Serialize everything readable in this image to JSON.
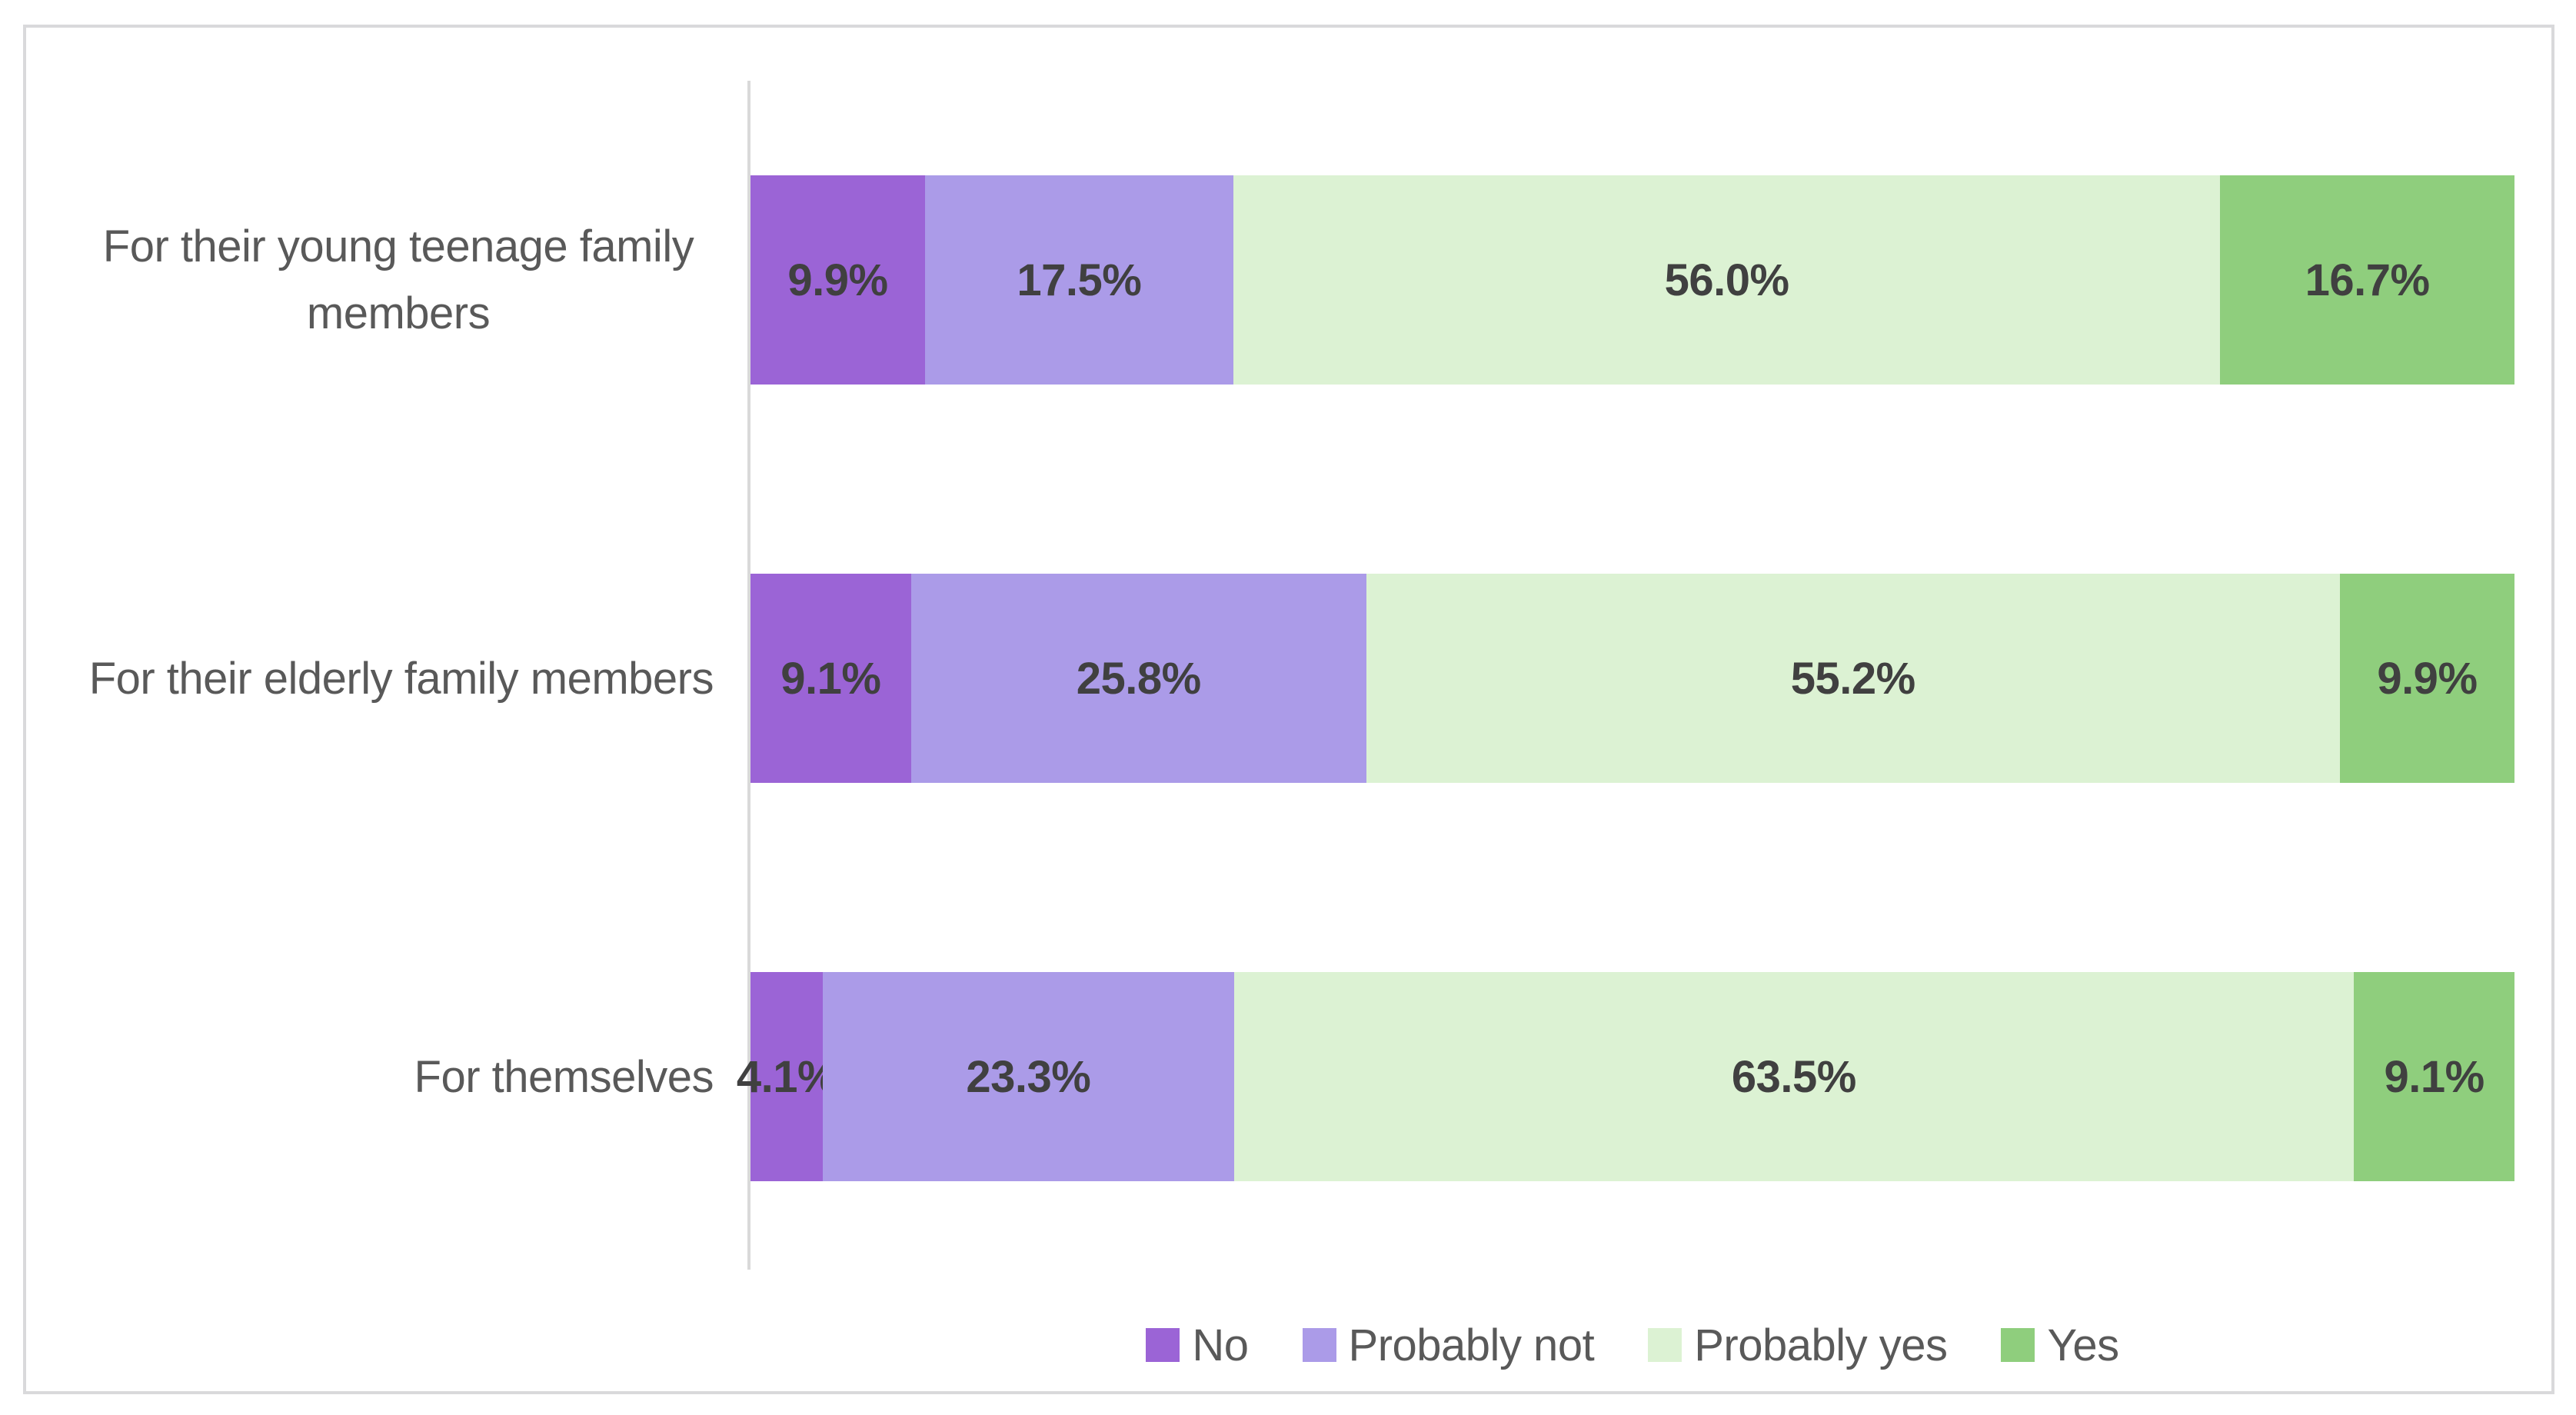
{
  "chart_data": {
    "type": "bar",
    "orientation": "horizontal",
    "stacked": true,
    "unit": "%",
    "title": "",
    "xlabel": "",
    "ylabel": "",
    "xlim": [
      0,
      100
    ],
    "grid": false,
    "categories": [
      "For their young teenage family members",
      "For their elderly family members",
      "For themselves"
    ],
    "series": [
      {
        "name": "No",
        "color": "#9b64d6",
        "values": [
          9.9,
          9.1,
          4.1
        ]
      },
      {
        "name": "Probably not",
        "color": "#ab9be8",
        "values": [
          17.5,
          25.8,
          23.3
        ]
      },
      {
        "name": "Probably yes",
        "color": "#dcf2d3",
        "values": [
          56.0,
          55.2,
          63.5
        ]
      },
      {
        "name": "Yes",
        "color": "#8fce7d",
        "values": [
          16.7,
          9.9,
          9.1
        ]
      }
    ],
    "data_labels": [
      [
        "9.9%",
        "17.5%",
        "56.0%",
        "16.7%"
      ],
      [
        "9.1%",
        "25.8%",
        "55.2%",
        "9.9%"
      ],
      [
        "4.1%",
        "23.3%",
        "63.5%",
        "9.1%"
      ]
    ],
    "legend": {
      "position": "bottom",
      "items": [
        "No",
        "Probably not",
        "Probably yes",
        "Yes"
      ]
    }
  },
  "colors": {
    "background": "#ffffff",
    "card_border": "#d9d9db",
    "axis_line": "#d9d9d9",
    "category_label_text": "#595959",
    "data_label_text": "#404040",
    "legend_text": "#595959"
  }
}
